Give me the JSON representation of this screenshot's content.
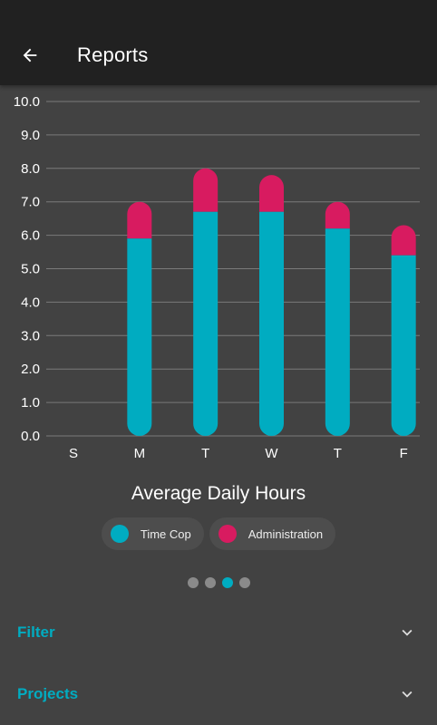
{
  "appbar": {
    "title": "Reports"
  },
  "chart_data": {
    "type": "bar",
    "stacked": true,
    "title": "Average Daily Hours",
    "categories": [
      "S",
      "M",
      "T",
      "W",
      "T",
      "F",
      "S"
    ],
    "series": [
      {
        "name": "Time Cop",
        "color": "#00acc1",
        "values": [
          0,
          5.9,
          6.7,
          6.7,
          6.2,
          5.4,
          0
        ]
      },
      {
        "name": "Administration",
        "color": "#d81b60",
        "values": [
          0,
          1.1,
          1.3,
          1.1,
          0.8,
          0.9,
          0
        ]
      }
    ],
    "ylim": [
      0,
      10
    ],
    "yticks": [
      "0.0",
      "1.0",
      "2.0",
      "3.0",
      "4.0",
      "5.0",
      "6.0",
      "7.0",
      "8.0",
      "9.0",
      "10.0"
    ],
    "grid": true,
    "legend_position": "bottom"
  },
  "pager": {
    "count": 4,
    "active": 3
  },
  "sections": [
    {
      "label": "Filter"
    },
    {
      "label": "Projects"
    }
  ],
  "colors": {
    "accent": "#00acc1",
    "secondary": "#d81b60",
    "background": "#424242",
    "appbar": "#212121"
  }
}
